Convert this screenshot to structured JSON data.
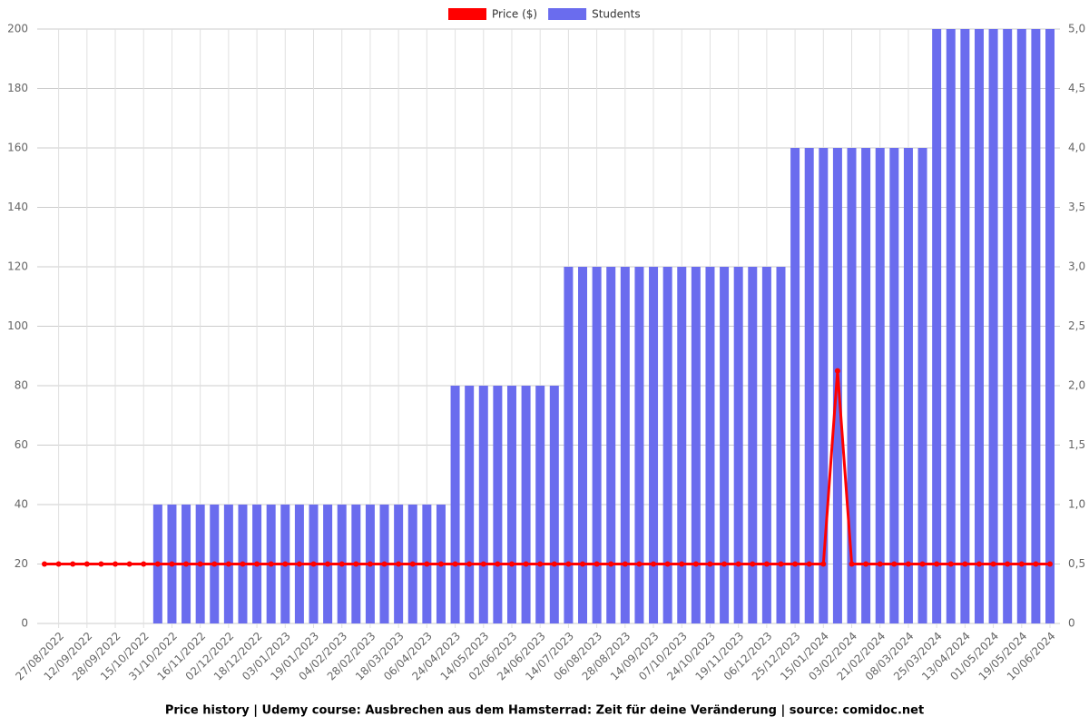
{
  "chart_data": {
    "type": "bar-line",
    "title": "Price history | Udemy course: Ausbrechen aus dem Hamsterrad: Zeit für deine Veränderung | source: comidoc.net",
    "categories": [
      null,
      "27/08/2022",
      null,
      "12/09/2022",
      null,
      "28/09/2022",
      null,
      "15/10/2022",
      null,
      "31/10/2022",
      null,
      "16/11/2022",
      null,
      "02/12/2022",
      null,
      "18/12/2022",
      null,
      "03/01/2023",
      null,
      "19/01/2023",
      null,
      "04/02/2023",
      null,
      "28/02/2023",
      null,
      "18/03/2023",
      null,
      "06/04/2023",
      null,
      "24/04/2023",
      null,
      "14/05/2023",
      null,
      "02/06/2023",
      null,
      "24/06/2023",
      null,
      "14/07/2023",
      null,
      "06/08/2023",
      null,
      "28/08/2023",
      null,
      "14/09/2023",
      null,
      "07/10/2023",
      null,
      "24/10/2023",
      null,
      "19/11/2023",
      null,
      "06/12/2023",
      null,
      "25/12/2023",
      null,
      "15/01/2024",
      null,
      "03/02/2024",
      null,
      "21/02/2024",
      null,
      "08/03/2024",
      null,
      "25/03/2024",
      null,
      "13/04/2024",
      null,
      "01/05/2024",
      null,
      "19/05/2024",
      null,
      "10/06/2024"
    ],
    "series": [
      {
        "name": "Price ($)",
        "color": "#ff0000",
        "kind": "line",
        "axis": "y",
        "values": [
          20,
          20,
          20,
          20,
          20,
          20,
          20,
          20,
          20,
          20,
          20,
          20,
          20,
          20,
          20,
          20,
          20,
          20,
          20,
          20,
          20,
          20,
          20,
          20,
          20,
          20,
          20,
          20,
          20,
          20,
          20,
          20,
          20,
          20,
          20,
          20,
          20,
          20,
          20,
          20,
          20,
          20,
          20,
          20,
          20,
          20,
          20,
          20,
          20,
          20,
          20,
          20,
          20,
          20,
          20,
          20,
          85,
          20,
          20,
          20,
          20,
          20,
          20,
          20,
          20,
          20,
          20,
          20,
          20,
          20,
          20,
          20
        ]
      },
      {
        "name": "Students",
        "color": "#6a6cee",
        "kind": "bar",
        "axis": "y2",
        "values": [
          0,
          0,
          0,
          0,
          0,
          0,
          0,
          0,
          1,
          1,
          1,
          1,
          1,
          1,
          1,
          1,
          1,
          1,
          1,
          1,
          1,
          1,
          1,
          1,
          1,
          1,
          1,
          1,
          1,
          2,
          2,
          2,
          2,
          2,
          2,
          2,
          2,
          3,
          3,
          3,
          3,
          3,
          3,
          3,
          3,
          3,
          3,
          3,
          3,
          3,
          3,
          3,
          3,
          4,
          4,
          4,
          4,
          4,
          4,
          4,
          4,
          4,
          4,
          5,
          5,
          5,
          5,
          5,
          5,
          5,
          5,
          5
        ]
      }
    ],
    "ylim": [
      0,
      200
    ],
    "yticks": [
      0,
      20,
      40,
      60,
      80,
      100,
      120,
      140,
      160,
      180,
      200
    ],
    "y2lim": [
      0,
      5
    ],
    "y2ticks": [
      0,
      {
        "value": 0.5,
        "label": "0,5"
      },
      {
        "value": 1,
        "label": "1,0"
      },
      {
        "value": 1.5,
        "label": "1,5"
      },
      {
        "value": 2,
        "label": "2,0"
      },
      {
        "value": 2.5,
        "label": "2,5"
      },
      {
        "value": 3,
        "label": "3,0"
      },
      {
        "value": 3.5,
        "label": "3,5"
      },
      {
        "value": 4,
        "label": "4,0"
      },
      {
        "value": 4.5,
        "label": "4,5"
      },
      {
        "value": 5,
        "label": "5,0"
      }
    ],
    "grid": true,
    "legend": "top"
  }
}
